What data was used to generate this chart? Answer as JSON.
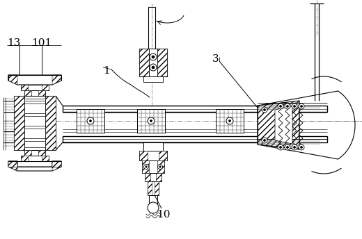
{
  "bg_color": "#ffffff",
  "line_color": "#000000",
  "figsize": [
    5.2,
    3.44
  ],
  "dpi": 100,
  "label_fontsize": 11
}
